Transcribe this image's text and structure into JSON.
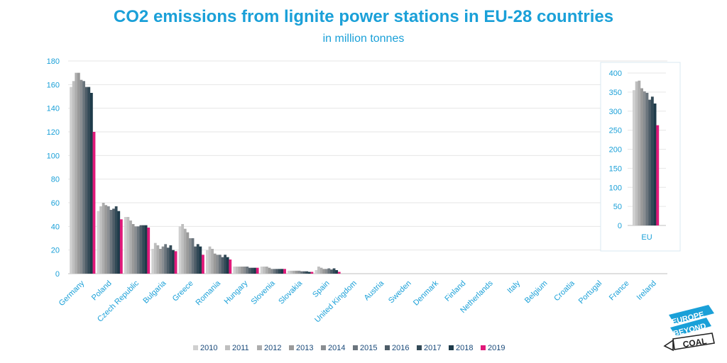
{
  "title": "CO2 emissions from lignite power stations in EU-28 countries",
  "subtitle": "in million tonnes",
  "logo": {
    "line1": "EUROPE",
    "line2": "BEYOND",
    "line3": "COAL"
  },
  "colors": {
    "text": "#1aa0d8",
    "series": [
      "#d0d0d0",
      "#bfbfbf",
      "#adadad",
      "#9a9a9a",
      "#8a8e92",
      "#6b757d",
      "#4e5d68",
      "#334a57",
      "#1e3b4a",
      "#e0197a"
    ]
  },
  "chart_data": [
    {
      "type": "bar",
      "title": "CO2 emissions from lignite power stations in EU-28 countries",
      "subtitle": "in million tonnes",
      "ylim": [
        0,
        180
      ],
      "yticks": [
        0,
        20,
        40,
        60,
        80,
        100,
        120,
        140,
        160,
        180
      ],
      "grid": true,
      "legend": "bottom",
      "categories": [
        "Germany",
        "Poland",
        "Czech Republic",
        "Bulgaria",
        "Greece",
        "Romania",
        "Hungary",
        "Slovenia",
        "Slovakia",
        "Spain",
        "United Kingdom",
        "Austria",
        "Sweden",
        "Denmark",
        "Finland",
        "Netherlands",
        "Italy",
        "Belgium",
        "Croatia",
        "Portugal",
        "France",
        "Ireland"
      ],
      "series": [
        {
          "name": "2010",
          "values": [
            158,
            53,
            48,
            21,
            40,
            20,
            6,
            6,
            2.5,
            3,
            0,
            0,
            0,
            0,
            0,
            0,
            0,
            0,
            0,
            0,
            0,
            0
          ]
        },
        {
          "name": "2011",
          "values": [
            163,
            57,
            48,
            26,
            42,
            23,
            6,
            6,
            2.5,
            6,
            0,
            0,
            0,
            0,
            0,
            0,
            0,
            0,
            0,
            0,
            0,
            0
          ]
        },
        {
          "name": "2012",
          "values": [
            170,
            60,
            45,
            24,
            38,
            21,
            6,
            6,
            2.5,
            5,
            0,
            0,
            0,
            0,
            0,
            0,
            0,
            0,
            0,
            0,
            0,
            0
          ]
        },
        {
          "name": "2013",
          "values": [
            170,
            58,
            42,
            21,
            35,
            17,
            6,
            5,
            2.5,
            4,
            0,
            0,
            0,
            0,
            0,
            0,
            0,
            0,
            0,
            0,
            0,
            0
          ]
        },
        {
          "name": "2014",
          "values": [
            164,
            57,
            40,
            23,
            30,
            16,
            6,
            4,
            2.5,
            4,
            0,
            0,
            0,
            0,
            0,
            0,
            0,
            0,
            0,
            0,
            0,
            0
          ]
        },
        {
          "name": "2015",
          "values": [
            163,
            54,
            40,
            25,
            30,
            16,
            6,
            4,
            2,
            4.5,
            0,
            0,
            0,
            0,
            0,
            0,
            0,
            0,
            0,
            0,
            0,
            0
          ]
        },
        {
          "name": "2016",
          "values": [
            158,
            55,
            41,
            22,
            23,
            14,
            5,
            4,
            2,
            3.5,
            0,
            0,
            0,
            0,
            0,
            0,
            0,
            0,
            0,
            0,
            0,
            0
          ]
        },
        {
          "name": "2017",
          "values": [
            158,
            57,
            41,
            24,
            25,
            16,
            5,
            4,
            2,
            4.5,
            0,
            0,
            0,
            0,
            0,
            0,
            0,
            0,
            0,
            0,
            0,
            0
          ]
        },
        {
          "name": "2018",
          "values": [
            153,
            53,
            41,
            20,
            23,
            14,
            5,
            4,
            1.5,
            3,
            0,
            0,
            0,
            0,
            0,
            0,
            0,
            0,
            0,
            0,
            0,
            0
          ]
        },
        {
          "name": "2019",
          "values": [
            120,
            46,
            39,
            19,
            16,
            12,
            5,
            4,
            1.5,
            1.5,
            0,
            0,
            0,
            0,
            0,
            0,
            0,
            0,
            0,
            0,
            0,
            0
          ]
        }
      ]
    },
    {
      "type": "bar",
      "ylim": [
        0,
        400
      ],
      "yticks": [
        0,
        50,
        100,
        150,
        200,
        250,
        300,
        350,
        400
      ],
      "grid": true,
      "categories": [
        "EU"
      ],
      "series": [
        {
          "name": "2010",
          "values": [
            355
          ]
        },
        {
          "name": "2011",
          "values": [
            378
          ]
        },
        {
          "name": "2012",
          "values": [
            380
          ]
        },
        {
          "name": "2013",
          "values": [
            360
          ]
        },
        {
          "name": "2014",
          "values": [
            352
          ]
        },
        {
          "name": "2015",
          "values": [
            348
          ]
        },
        {
          "name": "2016",
          "values": [
            330
          ]
        },
        {
          "name": "2017",
          "values": [
            338
          ]
        },
        {
          "name": "2018",
          "values": [
            320
          ]
        },
        {
          "name": "2019",
          "values": [
            263
          ]
        }
      ]
    }
  ]
}
